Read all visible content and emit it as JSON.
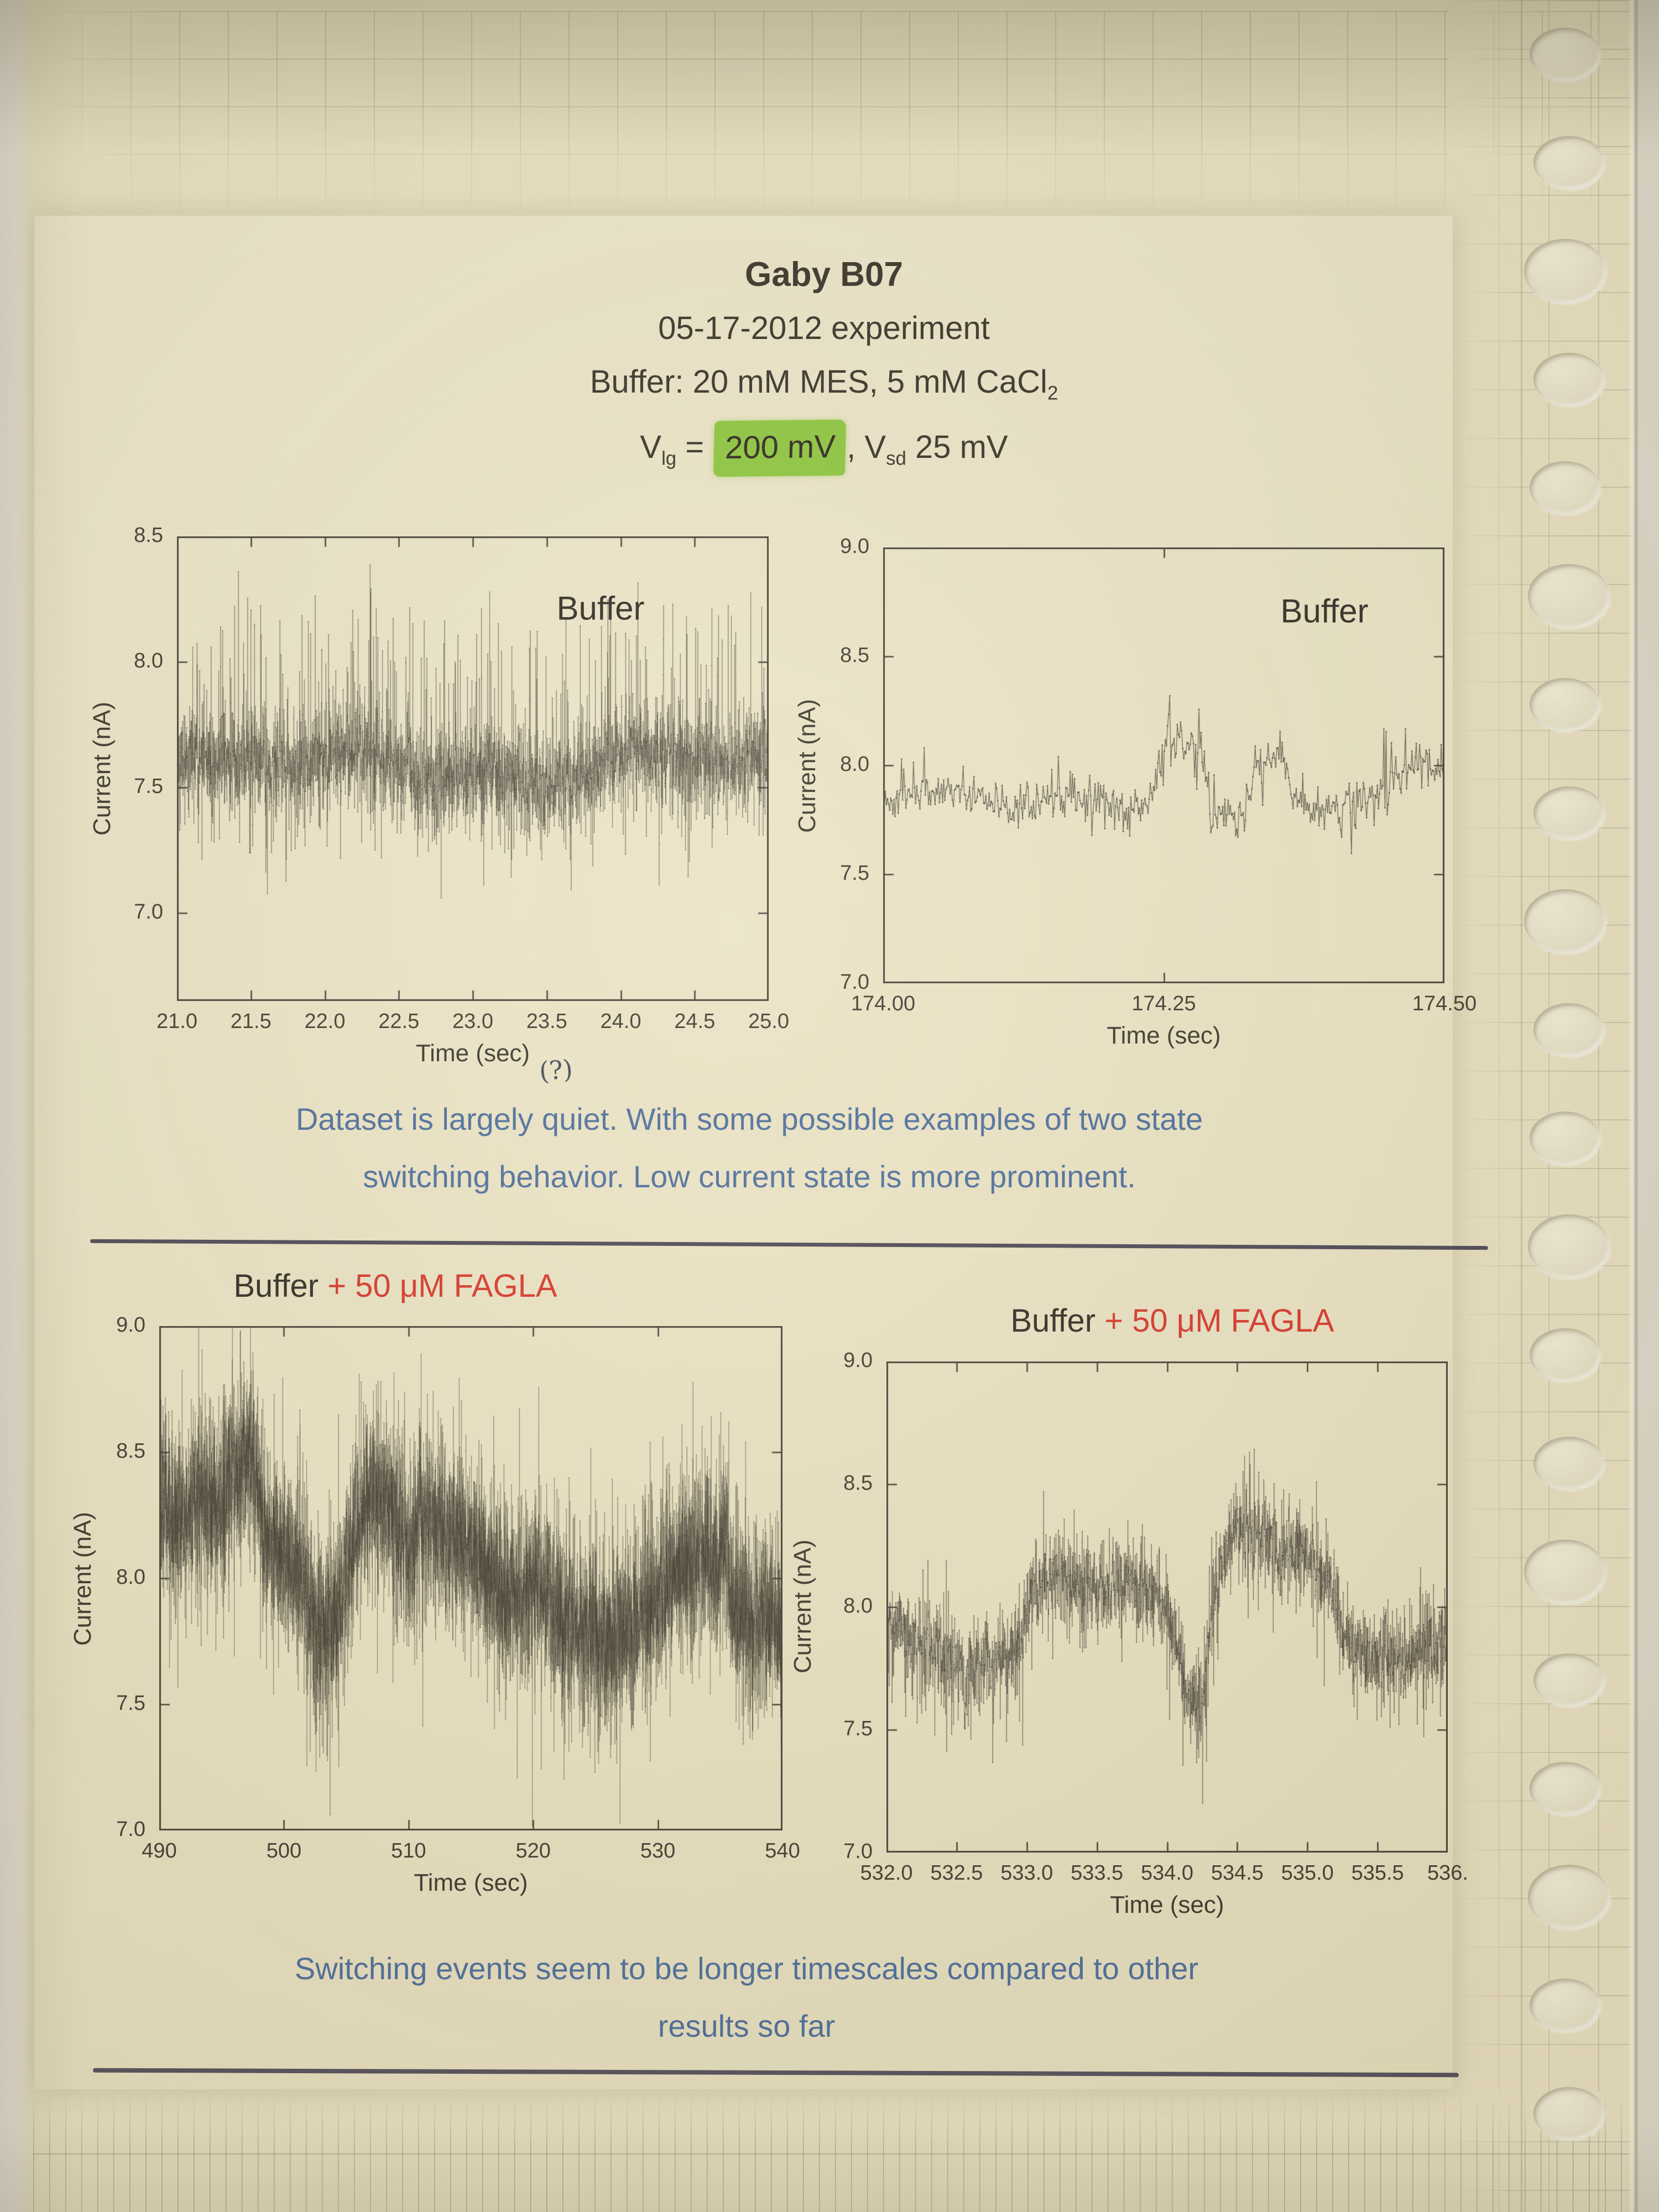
{
  "header": {
    "title": "Gaby B07",
    "date_line": "05-17-2012 experiment",
    "buffer_line": {
      "text": "Buffer: 20 mM MES, 5 mM CaCl",
      "sub": "2"
    },
    "voltage_line": {
      "v1": "V",
      "v1_sub": "lg",
      "equals": " = ",
      "highlighted_value": "200 mV",
      "comma": ", ",
      "v2": "V",
      "v2_sub": "sd",
      "v2_value": " 25 mV"
    }
  },
  "notes": {
    "annotation": "(?)",
    "note1_line1": "Dataset is largely quiet. With some possible examples of two state",
    "note1_line2": "switching behavior. Low current state is more prominent.",
    "note2_line1": "Switching events seem to be longer timescales compared to other",
    "note2_line2": "results so far"
  },
  "colors": {
    "ink": "#3c362d",
    "axis": "#474038",
    "tick_text": "#443d33",
    "blue_text": "#4e6f9d",
    "red_text": "#d8382c",
    "highlight_green": "#8dc63f",
    "separator": "#4e4a57",
    "page": "#e9e1c2"
  },
  "sleeve": {
    "hole_count": 20
  },
  "chart_data": [
    {
      "name": "buffer-trace-21-25s",
      "type": "scatter",
      "title_parts": [
        {
          "text": "Buffer",
          "color": "#332d26"
        }
      ],
      "title_inside": true,
      "xlabel": "Time (sec)",
      "ylabel": "Current (nA)",
      "xlim": [
        21.0,
        25.0
      ],
      "ylim": [
        6.65,
        8.5
      ],
      "xticks": {
        "values": [
          21.0,
          21.5,
          22.0,
          22.5,
          23.0,
          23.5,
          24.0,
          24.5,
          25.0
        ],
        "labels": [
          "21.0",
          "21.5",
          "22.0",
          "22.5",
          "23.0",
          "23.5",
          "24.0",
          "24.5",
          "25.0"
        ]
      },
      "yticks": {
        "values": [
          7.0,
          7.5,
          8.0,
          8.5
        ],
        "labels": [
          "7.0",
          "7.5",
          "8.0",
          "8.5"
        ]
      },
      "series": {
        "seed": 11,
        "n": 3600,
        "noise_sd": 0.1,
        "spike_up": [
          0.055,
          0.62
        ],
        "spike_down": [
          0.035,
          0.38
        ],
        "line_w": 0.6,
        "dot": 1.5,
        "baseline": [
          [
            21.0,
            7.62
          ],
          [
            21.8,
            7.58
          ],
          [
            22.3,
            7.66
          ],
          [
            22.7,
            7.52
          ],
          [
            23.1,
            7.58
          ],
          [
            23.45,
            7.5
          ],
          [
            23.8,
            7.55
          ],
          [
            24.0,
            7.66
          ],
          [
            24.5,
            7.6
          ],
          [
            25.0,
            7.62
          ]
        ]
      }
    },
    {
      "name": "buffer-trace-174s",
      "type": "scatter",
      "title_parts": [
        {
          "text": "Buffer",
          "color": "#332d26"
        }
      ],
      "title_inside": true,
      "xlabel": "Time (sec)",
      "ylabel": "Current (nA)",
      "xlim": [
        174.0,
        174.5
      ],
      "ylim": [
        7.0,
        9.0
      ],
      "xticks": {
        "values": [
          174.0,
          174.25,
          174.5
        ],
        "labels": [
          "174.00",
          "174.25",
          "174.50"
        ]
      },
      "yticks": {
        "values": [
          7.0,
          7.5,
          8.0,
          8.5,
          9.0
        ],
        "labels": [
          "7.0",
          "7.5",
          "8.0",
          "8.5",
          "9.0"
        ]
      },
      "series": {
        "seed": 23,
        "n": 520,
        "noise_sd": 0.05,
        "spike_up": [
          0.02,
          0.25
        ],
        "spike_down": [
          0.02,
          0.2
        ],
        "line_w": 1.2,
        "dot": 2.4,
        "baseline": [
          [
            174.0,
            7.82
          ],
          [
            174.05,
            7.88
          ],
          [
            174.12,
            7.8
          ],
          [
            174.18,
            7.86
          ],
          [
            174.23,
            7.78
          ],
          [
            174.252,
            8.1
          ],
          [
            174.282,
            8.12
          ],
          [
            174.29,
            7.8
          ],
          [
            174.32,
            7.75
          ],
          [
            174.332,
            8.0
          ],
          [
            174.355,
            8.05
          ],
          [
            174.365,
            7.82
          ],
          [
            174.42,
            7.8
          ],
          [
            174.45,
            7.92
          ],
          [
            174.48,
            8.02
          ],
          [
            174.5,
            7.95
          ]
        ]
      }
    },
    {
      "name": "buffer-fagla-trace-490-540s",
      "type": "scatter",
      "title_parts": [
        {
          "text": "Buffer ",
          "color": "#332d26"
        },
        {
          "text": "+ 50 μM FAGLA",
          "color": "#d8382c"
        }
      ],
      "title_inside": false,
      "xlabel": "Time (sec)",
      "ylabel": "Current (nA)",
      "xlim": [
        490,
        540
      ],
      "ylim": [
        7.0,
        9.0
      ],
      "xticks": {
        "values": [
          490,
          500,
          510,
          520,
          530,
          540
        ],
        "labels": [
          "490",
          "500",
          "510",
          "520",
          "530",
          "540"
        ]
      },
      "yticks": {
        "values": [
          7.0,
          7.5,
          8.0,
          8.5,
          9.0
        ],
        "labels": [
          "7.0",
          "7.5",
          "8.0",
          "8.5",
          "9.0"
        ]
      },
      "series": {
        "seed": 37,
        "n": 9000,
        "noise_sd": 0.155,
        "spike_up": [
          0.05,
          0.42
        ],
        "spike_down": [
          0.05,
          0.45
        ],
        "line_w": 0.5,
        "dot": 1.3,
        "baseline": [
          [
            490,
            8.28
          ],
          [
            491.5,
            8.2
          ],
          [
            493,
            8.35
          ],
          [
            495,
            8.28
          ],
          [
            496.5,
            8.45
          ],
          [
            497.5,
            8.5
          ],
          [
            498.5,
            8.15
          ],
          [
            500,
            8.12
          ],
          [
            501.5,
            8.0
          ],
          [
            502.5,
            7.8
          ],
          [
            504,
            7.8
          ],
          [
            505.5,
            8.15
          ],
          [
            507,
            8.32
          ],
          [
            508.5,
            8.3
          ],
          [
            510,
            8.1
          ],
          [
            511.5,
            8.25
          ],
          [
            513,
            8.2
          ],
          [
            514.5,
            8.15
          ],
          [
            516,
            8.05
          ],
          [
            517.5,
            7.95
          ],
          [
            519,
            7.92
          ],
          [
            520.5,
            7.98
          ],
          [
            522,
            7.85
          ],
          [
            524,
            7.78
          ],
          [
            526,
            7.75
          ],
          [
            528,
            7.82
          ],
          [
            529.5,
            7.9
          ],
          [
            531,
            8.0
          ],
          [
            532.5,
            8.08
          ],
          [
            533.5,
            8.1
          ],
          [
            534.8,
            8.02
          ],
          [
            535.3,
            8.2
          ],
          [
            536,
            7.9
          ],
          [
            537.5,
            7.82
          ],
          [
            539,
            7.85
          ],
          [
            540,
            7.8
          ]
        ]
      }
    },
    {
      "name": "buffer-fagla-trace-532-536s",
      "type": "scatter",
      "title_parts": [
        {
          "text": "Buffer ",
          "color": "#332d26"
        },
        {
          "text": "+ 50 μM FAGLA",
          "color": "#d8382c"
        }
      ],
      "title_inside": false,
      "xlabel": "Time (sec)",
      "ylabel": "Current (nA)",
      "xlim": [
        532.0,
        536.0
      ],
      "ylim": [
        7.0,
        9.0
      ],
      "xticks": {
        "values": [
          532.0,
          532.5,
          533.0,
          533.5,
          534.0,
          534.5,
          535.0,
          535.5,
          536.0
        ],
        "labels": [
          "532.0",
          "532.5",
          "533.0",
          "533.5",
          "534.0",
          "534.5",
          "535.0",
          "535.5",
          "536."
        ]
      },
      "yticks": {
        "values": [
          7.0,
          7.5,
          8.0,
          8.5,
          9.0
        ],
        "labels": [
          "7.0",
          "7.5",
          "8.0",
          "8.5",
          "9.0"
        ]
      },
      "series": {
        "seed": 53,
        "n": 2600,
        "noise_sd": 0.085,
        "spike_up": [
          0.04,
          0.25
        ],
        "spike_down": [
          0.045,
          0.33
        ],
        "line_w": 0.7,
        "dot": 1.6,
        "baseline": [
          [
            532.0,
            7.92
          ],
          [
            532.15,
            7.88
          ],
          [
            532.35,
            7.82
          ],
          [
            532.55,
            7.72
          ],
          [
            532.8,
            7.78
          ],
          [
            532.95,
            7.85
          ],
          [
            533.02,
            8.05
          ],
          [
            533.2,
            8.12
          ],
          [
            533.5,
            8.08
          ],
          [
            533.75,
            8.1
          ],
          [
            533.95,
            8.05
          ],
          [
            534.05,
            7.9
          ],
          [
            534.15,
            7.62
          ],
          [
            534.25,
            7.6
          ],
          [
            534.32,
            8.0
          ],
          [
            534.45,
            8.28
          ],
          [
            534.6,
            8.32
          ],
          [
            534.8,
            8.22
          ],
          [
            535.0,
            8.22
          ],
          [
            535.15,
            8.1
          ],
          [
            535.25,
            7.88
          ],
          [
            535.5,
            7.8
          ],
          [
            535.7,
            7.78
          ],
          [
            535.85,
            7.85
          ],
          [
            536.0,
            7.82
          ]
        ]
      }
    }
  ]
}
